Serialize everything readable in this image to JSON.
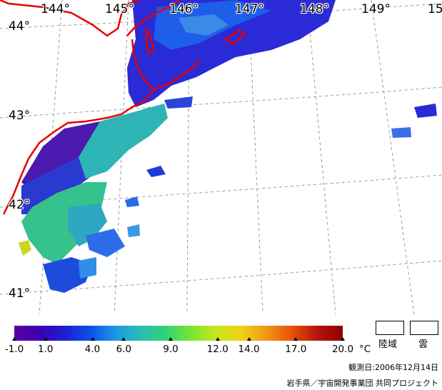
{
  "map": {
    "longitude_labels": [
      "144°",
      "145°",
      "146°",
      "147°",
      "148°",
      "149°",
      "15"
    ],
    "latitude_labels": [
      "44°",
      "43°",
      "42°",
      "41°"
    ]
  },
  "legend": {
    "tick_labels": [
      "-1.0",
      "1.0",
      "4.0",
      "6.0",
      "9.0",
      "12.0",
      "14.0",
      "17.0",
      "20.0"
    ],
    "tick_values": [
      -1.0,
      1.0,
      4.0,
      6.0,
      9.0,
      12.0,
      14.0,
      17.0,
      20.0
    ],
    "range": [
      -1.0,
      20.0
    ],
    "unit": "°C",
    "gradient_colors": [
      "#5a00a0",
      "#3c00b0",
      "#1e1ed2",
      "#0a50e6",
      "#1e96e6",
      "#28beb4",
      "#32d278",
      "#78e632",
      "#c8e61e",
      "#f0d214",
      "#f09614",
      "#e6500a",
      "#b4140a",
      "#8c0000"
    ],
    "land_label": "陸域",
    "cloud_label": "雲"
  },
  "footer": {
    "observation_date": "観測日:2006年12月14日",
    "credit": "岩手県／宇宙開発事業団 共同プロジェクト"
  }
}
